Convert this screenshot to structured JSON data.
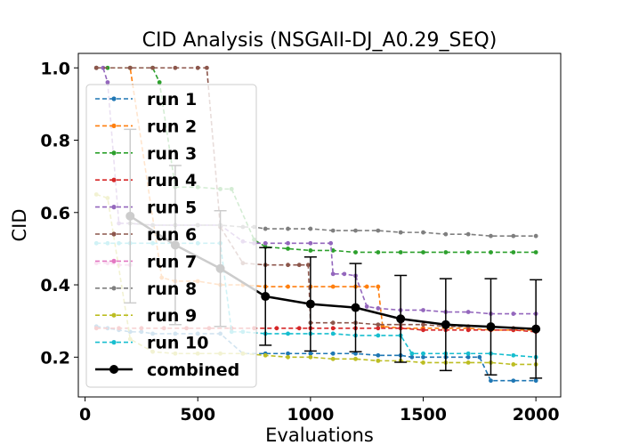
{
  "chart_data": {
    "type": "line",
    "title": "CID Analysis (NSGAII-DJ_A0.29_SEQ)",
    "xlabel": "Evaluations",
    "ylabel": "CID",
    "xlim": [
      -30,
      2110
    ],
    "ylim": [
      0.09,
      1.04
    ],
    "xticks": [
      0,
      500,
      1000,
      1500,
      2000
    ],
    "yticks": [
      0.2,
      0.4,
      0.6,
      0.8,
      1.0
    ],
    "xtick_labels": [
      "0",
      "500",
      "1000",
      "1500",
      "2000"
    ],
    "ytick_labels": [
      "0.2",
      "0.4",
      "0.6",
      "0.8",
      "1.0"
    ],
    "grid": false,
    "legend": "upper left",
    "series": [
      {
        "name": "run 1",
        "color": "#1f77b4",
        "x": [
          50,
          100,
          150,
          200,
          250,
          300,
          400,
          500,
          600,
          700,
          800,
          900,
          1000,
          1100,
          1200,
          1300,
          1400,
          1450,
          1500,
          1600,
          1700,
          1750,
          1800,
          1900,
          2000
        ],
        "y": [
          0.285,
          0.28,
          0.275,
          0.27,
          0.27,
          0.265,
          0.265,
          0.265,
          0.265,
          0.21,
          0.21,
          0.21,
          0.21,
          0.21,
          0.21,
          0.205,
          0.205,
          0.2,
          0.2,
          0.2,
          0.2,
          0.2,
          0.135,
          0.135,
          0.135
        ]
      },
      {
        "name": "run 2",
        "color": "#ff7f0e",
        "x": [
          50,
          200,
          340,
          400,
          500,
          600,
          700,
          800,
          900,
          1000,
          1100,
          1200,
          1250,
          1300,
          1320,
          1400,
          1500,
          1600,
          1700,
          1800,
          1900,
          2000
        ],
        "y": [
          1.0,
          1.0,
          0.42,
          0.41,
          0.41,
          0.4,
          0.4,
          0.395,
          0.395,
          0.395,
          0.395,
          0.395,
          0.395,
          0.395,
          0.285,
          0.28,
          0.28,
          0.28,
          0.28,
          0.275,
          0.275,
          0.275
        ]
      },
      {
        "name": "run 3",
        "color": "#2ca02c",
        "x": [
          50,
          100,
          200,
          300,
          330,
          400,
          500,
          600,
          650,
          750,
          800,
          900,
          1000,
          1100,
          1200,
          1300,
          1400,
          1500,
          1600,
          1700,
          1800,
          1900,
          2000
        ],
        "y": [
          1.0,
          1.0,
          1.0,
          1.0,
          0.96,
          0.67,
          0.67,
          0.665,
          0.665,
          0.525,
          0.505,
          0.5,
          0.495,
          0.495,
          0.49,
          0.49,
          0.49,
          0.49,
          0.49,
          0.49,
          0.49,
          0.49,
          0.49
        ]
      },
      {
        "name": "run 4",
        "color": "#d62728",
        "x": [
          50,
          150,
          250,
          350,
          450,
          550,
          650,
          750,
          850,
          950,
          1000,
          1100,
          1200,
          1300,
          1400,
          1500,
          1600,
          1700,
          1800,
          1900,
          2000
        ],
        "y": [
          0.28,
          0.28,
          0.28,
          0.28,
          0.28,
          0.28,
          0.28,
          0.28,
          0.28,
          0.28,
          0.28,
          0.28,
          0.28,
          0.28,
          0.28,
          0.275,
          0.275,
          0.275,
          0.275,
          0.275,
          0.27
        ]
      },
      {
        "name": "run 5",
        "color": "#9467bd",
        "x": [
          50,
          80,
          100,
          150,
          200,
          300,
          400,
          500,
          600,
          700,
          750,
          800,
          900,
          1000,
          1090,
          1100,
          1150,
          1200,
          1250,
          1300,
          1400,
          1500,
          1600,
          1700,
          1800,
          1900,
          2000
        ],
        "y": [
          1.0,
          1.0,
          0.96,
          0.57,
          0.57,
          0.565,
          0.565,
          0.565,
          0.565,
          0.52,
          0.515,
          0.515,
          0.515,
          0.515,
          0.515,
          0.43,
          0.43,
          0.425,
          0.34,
          0.335,
          0.33,
          0.33,
          0.325,
          0.325,
          0.32,
          0.32,
          0.32
        ]
      },
      {
        "name": "run 6",
        "color": "#8c564b",
        "x": [
          50,
          200,
          300,
          400,
          500,
          540,
          600,
          700,
          800,
          900,
          950,
          990,
          1000,
          1100,
          1200,
          1300,
          1400,
          1500,
          1600,
          1700,
          1800,
          1900,
          2000
        ],
        "y": [
          1.0,
          1.0,
          1.0,
          1.0,
          1.0,
          1.0,
          0.56,
          0.46,
          0.455,
          0.455,
          0.455,
          0.455,
          0.295,
          0.295,
          0.295,
          0.29,
          0.29,
          0.29,
          0.285,
          0.285,
          0.285,
          0.28,
          0.28
        ]
      },
      {
        "name": "run 7",
        "color": "#e377c2",
        "x": [
          50,
          100,
          150,
          200
        ],
        "y": [
          0.46,
          0.46,
          0.455,
          0.455
        ]
      },
      {
        "name": "run 8",
        "color": "#7f7f7f",
        "x": [
          200,
          300,
          400,
          500,
          600,
          700,
          750,
          800,
          900,
          1000,
          1100,
          1200,
          1300,
          1400,
          1500,
          1600,
          1700,
          1800,
          1900,
          2000
        ],
        "y": [
          0.57,
          0.565,
          0.565,
          0.565,
          0.565,
          0.56,
          0.56,
          0.555,
          0.555,
          0.555,
          0.55,
          0.55,
          0.55,
          0.545,
          0.545,
          0.54,
          0.54,
          0.535,
          0.535,
          0.535
        ]
      },
      {
        "name": "run 9",
        "color": "#bcbd22",
        "x": [
          50,
          100,
          200,
          300,
          400,
          500,
          600,
          700,
          800,
          900,
          1000,
          1100,
          1200,
          1300,
          1400,
          1500,
          1600,
          1700,
          1800,
          1900,
          2000
        ],
        "y": [
          0.65,
          0.64,
          0.25,
          0.215,
          0.21,
          0.21,
          0.21,
          0.21,
          0.205,
          0.2,
          0.2,
          0.195,
          0.195,
          0.19,
          0.19,
          0.185,
          0.185,
          0.185,
          0.185,
          0.18,
          0.18
        ]
      },
      {
        "name": "run 10",
        "color": "#17becf",
        "x": [
          50,
          100,
          150,
          200,
          300,
          400,
          500,
          600,
          650,
          700,
          800,
          900,
          1000,
          1100,
          1200,
          1300,
          1400,
          1450,
          1500,
          1600,
          1700,
          1800,
          1900,
          2000
        ],
        "y": [
          0.515,
          0.515,
          0.515,
          0.515,
          0.515,
          0.515,
          0.515,
          0.515,
          0.27,
          0.27,
          0.265,
          0.265,
          0.265,
          0.265,
          0.26,
          0.26,
          0.26,
          0.21,
          0.21,
          0.21,
          0.21,
          0.21,
          0.205,
          0.2
        ]
      },
      {
        "name": "combined",
        "color": "#000000",
        "x": [
          200,
          400,
          600,
          800,
          1000,
          1200,
          1400,
          1600,
          1800,
          2000
        ],
        "y": [
          0.59,
          0.51,
          0.445,
          0.368,
          0.347,
          0.337,
          0.306,
          0.29,
          0.284,
          0.278
        ],
        "err": [
          0.24,
          0.22,
          0.16,
          0.135,
          0.13,
          0.122,
          0.12,
          0.127,
          0.133,
          0.136
        ]
      }
    ]
  }
}
